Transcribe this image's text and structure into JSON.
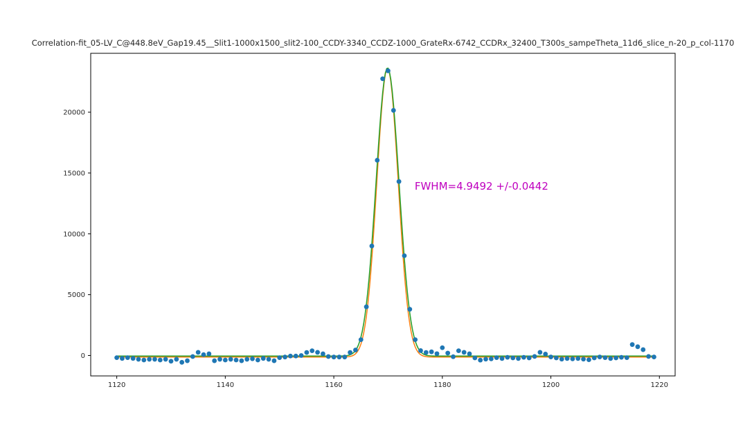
{
  "chart_data": {
    "type": "scatter",
    "title": "Correlation-fit_05-LV_C@448.8eV_Gap19.45__Slit1-1000x1500_slit2-100_CCDY-3340_CCDZ-1000_GrateRx-6742_CCDRx_32400_T300s_sampeTheta_11d6_slice_n-20_p_col-1170",
    "xlabel": "",
    "ylabel": "",
    "xlim": [
      1115.2,
      1222.9
    ],
    "ylim": [
      -1680,
      24840
    ],
    "x_ticks": [
      1120,
      1140,
      1160,
      1180,
      1200,
      1220
    ],
    "y_ticks": [
      0,
      5000,
      10000,
      15000,
      20000
    ],
    "grid": false,
    "legend": "none",
    "annotation": {
      "text": "FWHM=4.9492 +/-0.0442",
      "x": 1174.9,
      "y": 13900,
      "color": "#bf00bf"
    },
    "scatter_color": "#1f77b4",
    "fit_line": {
      "shape": "gaussian",
      "color": "#2ca02c",
      "center": 1169.9,
      "sigma": 2.1018,
      "fwhm": 4.9492,
      "fwhm_error": 0.0442,
      "amplitude": 23700,
      "baseline": -50,
      "x_start": 1120,
      "x_end": 1219.3
    },
    "underlay_line": {
      "shape": "gaussian",
      "color": "#ff7f0e",
      "center": 1169.9,
      "sigma": 1.97,
      "amplitude": 23750,
      "baseline": -130,
      "x_start": 1120,
      "x_end": 1219.3
    },
    "points": [
      [
        1120,
        -180
      ],
      [
        1121,
        -240
      ],
      [
        1122,
        -180
      ],
      [
        1123,
        -240
      ],
      [
        1124,
        -310
      ],
      [
        1125,
        -370
      ],
      [
        1126,
        -310
      ],
      [
        1127,
        -310
      ],
      [
        1128,
        -370
      ],
      [
        1129,
        -310
      ],
      [
        1130,
        -470
      ],
      [
        1131,
        -310
      ],
      [
        1132,
        -560
      ],
      [
        1133,
        -430
      ],
      [
        1134,
        -85
      ],
      [
        1135,
        260
      ],
      [
        1136,
        70
      ],
      [
        1137,
        140
      ],
      [
        1138,
        -430
      ],
      [
        1139,
        -310
      ],
      [
        1140,
        -370
      ],
      [
        1141,
        -310
      ],
      [
        1142,
        -370
      ],
      [
        1143,
        -430
      ],
      [
        1144,
        -310
      ],
      [
        1145,
        -270
      ],
      [
        1146,
        -370
      ],
      [
        1147,
        -240
      ],
      [
        1148,
        -310
      ],
      [
        1149,
        -430
      ],
      [
        1150,
        -180
      ],
      [
        1151,
        -125
      ],
      [
        1152,
        -45
      ],
      [
        1153,
        -45
      ],
      [
        1154,
        0
      ],
      [
        1155,
        250
      ],
      [
        1156,
        390
      ],
      [
        1157,
        260
      ],
      [
        1158,
        140
      ],
      [
        1159,
        -85
      ],
      [
        1160,
        -125
      ],
      [
        1161,
        -125
      ],
      [
        1162,
        -125
      ],
      [
        1163,
        250
      ],
      [
        1164,
        450
      ],
      [
        1165,
        1300
      ],
      [
        1166,
        4000
      ],
      [
        1167,
        9000
      ],
      [
        1168,
        16050
      ],
      [
        1169,
        22750
      ],
      [
        1170,
        23400
      ],
      [
        1171,
        20150
      ],
      [
        1172,
        14300
      ],
      [
        1173,
        8200
      ],
      [
        1174,
        3800
      ],
      [
        1175,
        1300
      ],
      [
        1176,
        400
      ],
      [
        1177,
        250
      ],
      [
        1178,
        300
      ],
      [
        1179,
        150
      ],
      [
        1180,
        640
      ],
      [
        1181,
        200
      ],
      [
        1182,
        -100
      ],
      [
        1183,
        390
      ],
      [
        1184,
        260
      ],
      [
        1185,
        140
      ],
      [
        1186,
        -200
      ],
      [
        1187,
        -380
      ],
      [
        1188,
        -300
      ],
      [
        1189,
        -280
      ],
      [
        1190,
        -180
      ],
      [
        1191,
        -250
      ],
      [
        1192,
        -150
      ],
      [
        1193,
        -200
      ],
      [
        1194,
        -250
      ],
      [
        1195,
        -150
      ],
      [
        1196,
        -200
      ],
      [
        1197,
        -80
      ],
      [
        1198,
        260
      ],
      [
        1199,
        120
      ],
      [
        1200,
        -120
      ],
      [
        1201,
        -200
      ],
      [
        1202,
        -300
      ],
      [
        1203,
        -250
      ],
      [
        1204,
        -280
      ],
      [
        1205,
        -250
      ],
      [
        1206,
        -300
      ],
      [
        1207,
        -350
      ],
      [
        1208,
        -200
      ],
      [
        1209,
        -120
      ],
      [
        1210,
        -180
      ],
      [
        1211,
        -250
      ],
      [
        1212,
        -200
      ],
      [
        1213,
        -150
      ],
      [
        1214,
        -180
      ],
      [
        1215,
        900
      ],
      [
        1216,
        720
      ],
      [
        1217,
        480
      ],
      [
        1218,
        -80
      ],
      [
        1219,
        -120
      ]
    ],
    "spine_color": "#000000",
    "marker_radius": 3.4
  }
}
